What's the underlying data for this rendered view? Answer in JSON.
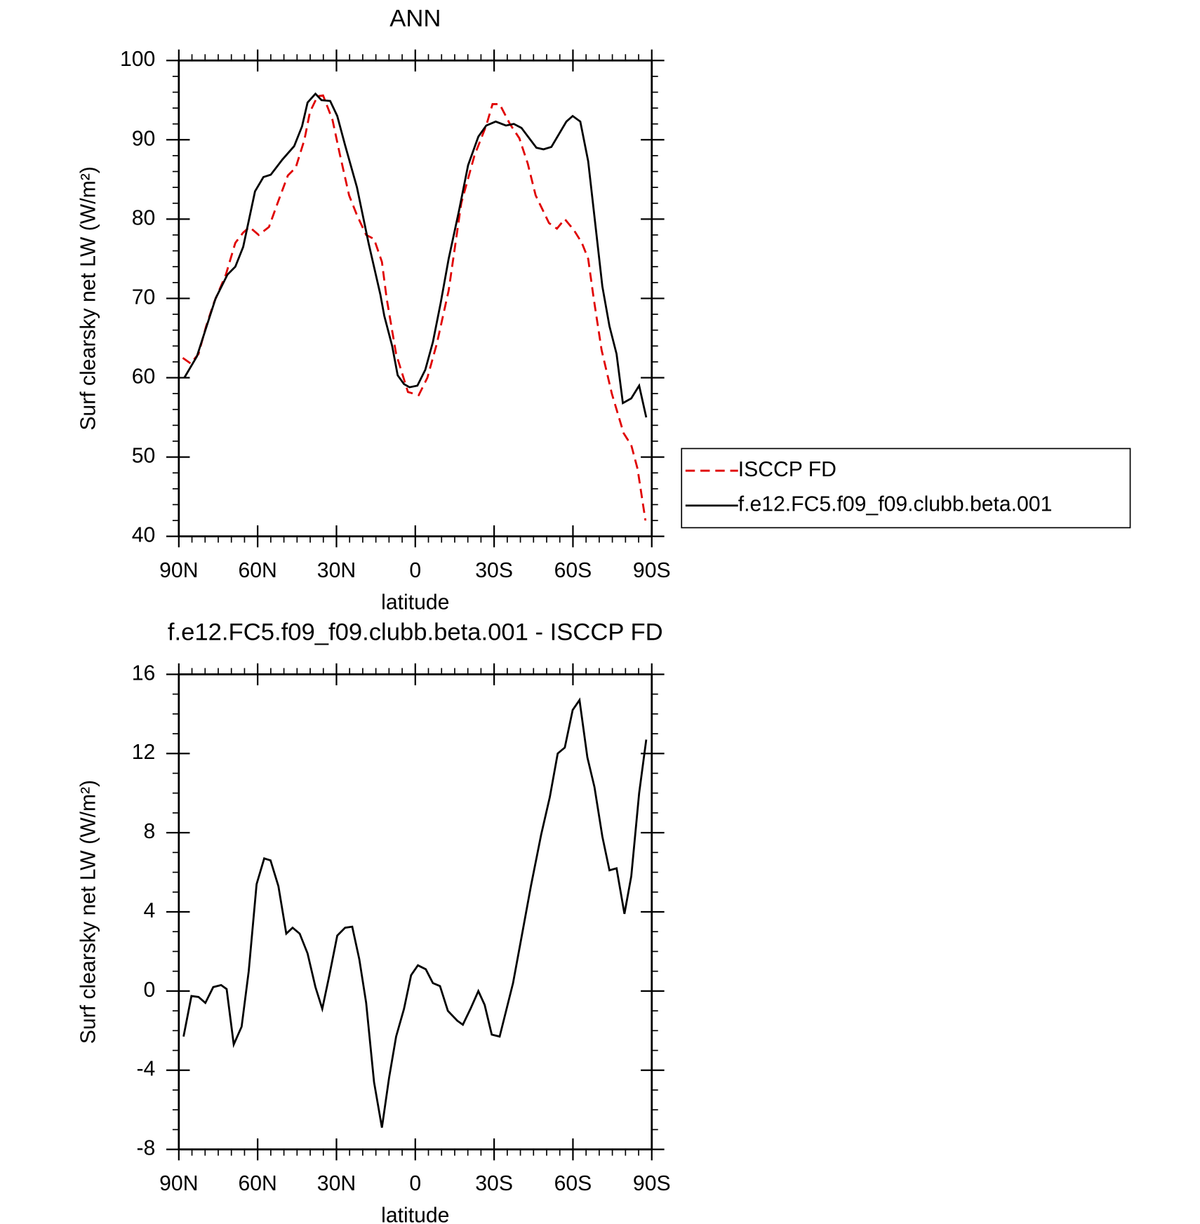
{
  "chart_data": [
    {
      "type": "line",
      "title": "ANN",
      "xlabel": "latitude",
      "ylabel": "Surf clearsky net LW (W/m²)",
      "xlim": [
        90,
        -90
      ],
      "xticks": [
        {
          "value": 90,
          "label": "90N"
        },
        {
          "value": 60,
          "label": "60N"
        },
        {
          "value": 30,
          "label": "30N"
        },
        0,
        {
          "value": -30,
          "label": "30S"
        },
        {
          "value": -60,
          "label": "60S"
        },
        {
          "value": -90,
          "label": "90S"
        }
      ],
      "ylim": [
        40,
        100
      ],
      "yticks": [
        40,
        50,
        60,
        70,
        80,
        90,
        100
      ],
      "legend": "right",
      "series": [
        {
          "name": "ISCCP FD",
          "color": "#e00000",
          "linestyle": "dashed",
          "x": [
            88.5,
            85.5,
            82.5,
            79.6,
            76.6,
            72.1,
            68.5,
            65.5,
            63.1,
            59.6,
            55.7,
            52.1,
            48.5,
            45.5,
            42.2,
            40.1,
            37.2,
            35.1,
            31.5,
            28.8,
            25.2,
            22.2,
            18.7,
            15.7,
            12.7,
            10.9,
            7.3,
            2.8,
            -1.3,
            -4.6,
            -8.2,
            -12.7,
            -17.5,
            -22.5,
            -27,
            -29.4,
            -32.1,
            -36,
            -39.6,
            -42.8,
            -45.8,
            -50.9,
            -53.9,
            -56.9,
            -60.4,
            -63.4,
            -65.8,
            -67.9,
            -70.9,
            -74.8,
            -79.3,
            -82.2,
            -84.6,
            -87.6
          ],
          "values": [
            62.5,
            61.8,
            63,
            66.5,
            69.5,
            73,
            77,
            78.3,
            79,
            78,
            79,
            82.3,
            85.5,
            86.5,
            90,
            93.5,
            95.5,
            95.6,
            92.5,
            88.3,
            83,
            80.5,
            78,
            77.5,
            74.6,
            70,
            63,
            58.2,
            57.8,
            60,
            64.3,
            71,
            82,
            88,
            91.8,
            94.5,
            94.5,
            92,
            90.2,
            87,
            83,
            79.5,
            78.8,
            80,
            78.6,
            77,
            75,
            70,
            63.5,
            58,
            53,
            51.5,
            48.5,
            42
          ]
        },
        {
          "name": "f.e12.FC5.f09_f09.clubb.beta.001",
          "color": "#000000",
          "linestyle": "solid",
          "x": [
            87.9,
            83.1,
            79.9,
            76,
            71.5,
            68.5,
            65.5,
            61,
            57.8,
            55,
            50.6,
            46.1,
            43.1,
            41,
            38,
            35.7,
            32.4,
            29.7,
            26.7,
            22.2,
            17.8,
            13.3,
            11.8,
            8.8,
            6.7,
            4.3,
            2.2,
            -0.8,
            -3.8,
            -6.7,
            -9.7,
            -12.7,
            -16.6,
            -20.1,
            -24,
            -27,
            -30.6,
            -34.5,
            -37.5,
            -40.4,
            -46.1,
            -48.8,
            -51.8,
            -57.5,
            -59.9,
            -62.8,
            -65.8,
            -71.2,
            -73.9,
            -76.6,
            -79,
            -82.2,
            -85.2,
            -87.9
          ],
          "values": [
            60,
            62.7,
            66,
            70,
            73,
            74,
            76.5,
            83.5,
            85.3,
            85.6,
            87.5,
            89.2,
            91.7,
            94.7,
            95.8,
            95,
            94.9,
            93,
            89.3,
            84,
            77,
            70.5,
            67.8,
            64,
            60.3,
            59.2,
            58.8,
            59,
            61,
            64.5,
            69.5,
            75,
            81,
            86.8,
            90.4,
            91.8,
            92.3,
            91.8,
            92,
            91.5,
            89,
            88.8,
            89.1,
            92.3,
            93,
            92.3,
            87.3,
            71.5,
            66.5,
            63,
            56.8,
            57.4,
            59,
            55
          ]
        }
      ]
    },
    {
      "type": "line",
      "title": "f.e12.FC5.f09_f09.clubb.beta.001 - ISCCP FD",
      "xlabel": "latitude",
      "ylabel": "Surf clearsky net LW (W/m²)",
      "xlim": [
        90,
        -90
      ],
      "xticks": [
        {
          "value": 90,
          "label": "90N"
        },
        {
          "value": 60,
          "label": "60N"
        },
        {
          "value": 30,
          "label": "30N"
        },
        0,
        {
          "value": -30,
          "label": "30S"
        },
        {
          "value": -60,
          "label": "60S"
        },
        {
          "value": -90,
          "label": "90S"
        }
      ],
      "ylim": [
        -8,
        16
      ],
      "yticks": [
        -8,
        -4,
        0,
        4,
        8,
        12,
        16
      ],
      "series": [
        {
          "color": "#000000",
          "linestyle": "solid",
          "x": [
            88.2,
            85.2,
            82.5,
            79.9,
            76.9,
            73.9,
            71.8,
            69.1,
            66.1,
            63.4,
            60.4,
            57.5,
            55.1,
            52.1,
            49.1,
            46.7,
            44,
            41,
            38,
            35.4,
            32.7,
            29.7,
            26.7,
            24,
            21.3,
            18.7,
            15.7,
            12.7,
            10,
            7.3,
            4.3,
            1.6,
            -1,
            -4,
            -6.7,
            -9.4,
            -12.4,
            -16,
            -18.1,
            -21,
            -24,
            -26.4,
            -29.1,
            -32.1,
            -37.2,
            -40.4,
            -44,
            -47.9,
            -51.2,
            -54.2,
            -56.9,
            -59.9,
            -62.5,
            -65.5,
            -68.2,
            -71.2,
            -73.9,
            -76.6,
            -79.6,
            -82.2,
            -85.2,
            -87.9
          ],
          "values": [
            -2.3,
            -0.25,
            -0.3,
            -0.6,
            0.2,
            0.3,
            0.1,
            -2.7,
            -1.8,
            1,
            5.4,
            6.7,
            6.6,
            5.3,
            2.9,
            3.2,
            2.9,
            1.9,
            0.2,
            -0.9,
            0.8,
            2.8,
            3.2,
            3.25,
            1.6,
            -0.6,
            -4.6,
            -6.9,
            -4.4,
            -2.3,
            -0.9,
            0.8,
            1.3,
            1.1,
            0.4,
            0.25,
            -1,
            -1.5,
            -1.7,
            -0.9,
            0,
            -0.7,
            -2.2,
            -2.3,
            0.4,
            2.7,
            5.3,
            7.9,
            9.8,
            12,
            12.3,
            14.2,
            14.7,
            11.8,
            10.3,
            7.8,
            6.1,
            6.2,
            3.9,
            5.8,
            10,
            12.7
          ]
        }
      ]
    }
  ]
}
